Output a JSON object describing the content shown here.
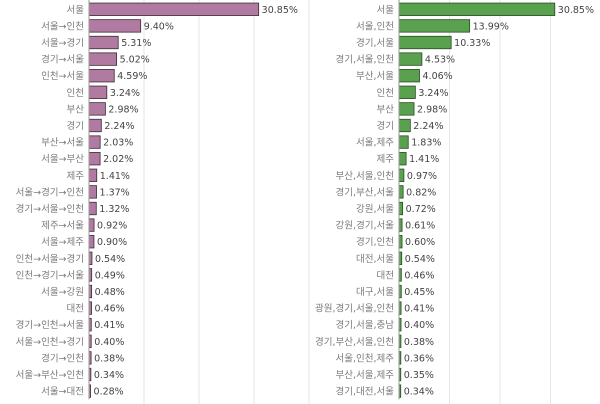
{
  "chart_data": [
    {
      "type": "bar",
      "orientation": "horizontal",
      "bar_color": "#b07aa1",
      "bar_border": "#3d2a37",
      "categories": [
        "서울",
        "서울→인천",
        "서울→경기",
        "경기→서울",
        "인천→서울",
        "인천",
        "부산",
        "경기",
        "부산→서울",
        "서울→부산",
        "제주",
        "서울→경기→인천",
        "경기→서울→인천",
        "제주→서울",
        "서울→제주",
        "인천→서울→경기",
        "인천→경기→서울",
        "서울→강원",
        "대전",
        "경기→인천→서울",
        "서울→인천→경기",
        "경기→인천",
        "서울→부산→인천",
        "서울→대전"
      ],
      "values": [
        30.85,
        9.4,
        5.31,
        5.02,
        4.59,
        3.24,
        2.98,
        2.24,
        2.03,
        2.02,
        1.41,
        1.37,
        1.32,
        0.92,
        0.9,
        0.54,
        0.49,
        0.48,
        0.46,
        0.41,
        0.4,
        0.38,
        0.34,
        0.28
      ],
      "labels": [
        "30.85%",
        "9.40%",
        "5.31%",
        "5.02%",
        "4.59%",
        "3.24%",
        "2.98%",
        "2.24%",
        "2.03%",
        "2.02%",
        "1.41%",
        "1.37%",
        "1.32%",
        "0.92%",
        "0.90%",
        "0.54%",
        "0.49%",
        "0.48%",
        "0.46%",
        "0.41%",
        "0.40%",
        "0.38%",
        "0.34%",
        "0.28%"
      ],
      "xlim": [
        0,
        40
      ],
      "grid": true,
      "title": "",
      "xlabel": "",
      "ylabel": ""
    },
    {
      "type": "bar",
      "orientation": "horizontal",
      "bar_color": "#59a14f",
      "bar_border": "#2b4a24",
      "categories": [
        "서울",
        "서울,인천",
        "경기,서울",
        "경기,서울,인천",
        "부산,서울",
        "인천",
        "부산",
        "경기",
        "서울,제주",
        "제주",
        "부산,서울,인천",
        "경기,부산,서울",
        "강원,서울",
        "강원,경기,서울",
        "경기,인천",
        "대전,서울",
        "대전",
        "대구,서울",
        "광원,경기,서울,인천",
        "경기,서울,충남",
        "경기,부산,서울,인천",
        "서울,인천,제주",
        "부산,서울,제주",
        "경기,대전,서울"
      ],
      "values": [
        30.85,
        13.99,
        10.33,
        4.53,
        4.06,
        3.24,
        2.98,
        2.24,
        1.83,
        1.41,
        0.97,
        0.82,
        0.72,
        0.61,
        0.6,
        0.54,
        0.46,
        0.45,
        0.41,
        0.4,
        0.38,
        0.36,
        0.35,
        0.34
      ],
      "labels": [
        "30.85%",
        "13.99%",
        "10.33%",
        "4.53%",
        "4.06%",
        "3.24%",
        "2.98%",
        "2.24%",
        "1.83%",
        "1.41%",
        "0.97%",
        "0.82%",
        "0.72%",
        "0.61%",
        "0.60%",
        "0.54%",
        "0.46%",
        "0.45%",
        "0.41%",
        "0.40%",
        "0.38%",
        "0.36%",
        "0.35%",
        "0.34%"
      ],
      "xlim": [
        0,
        40
      ],
      "grid": true,
      "title": "",
      "xlabel": "",
      "ylabel": ""
    }
  ]
}
